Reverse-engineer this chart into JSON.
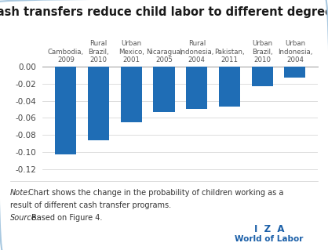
{
  "title": "Cash transfers reduce child labor to different degrees",
  "categories": [
    "Cambodia,\n2009",
    "Rural\nBrazil,\n2010",
    "Urban\nMexico,\n2001",
    "Nicaragua,\n2005",
    "Rural\nIndonesia,\n2004",
    "Pakistan,\n2011",
    "Urban\nBrazil,\n2010",
    "Urban\nIndonesia,\n2004"
  ],
  "values": [
    -0.103,
    -0.086,
    -0.065,
    -0.053,
    -0.049,
    -0.047,
    -0.023,
    -0.013
  ],
  "bar_color": "#1f6db5",
  "background_color": "#ffffff",
  "border_color": "#a8c8e0",
  "ylim": [
    -0.127,
    0.008
  ],
  "yticks": [
    0.0,
    -0.02,
    -0.04,
    -0.06,
    -0.08,
    -0.1,
    -0.12
  ],
  "title_fontsize": 10.5,
  "label_fontsize": 6.2,
  "axis_fontsize": 7.5,
  "note_fontsize": 7.0,
  "iza_color": "#1a5fa8"
}
